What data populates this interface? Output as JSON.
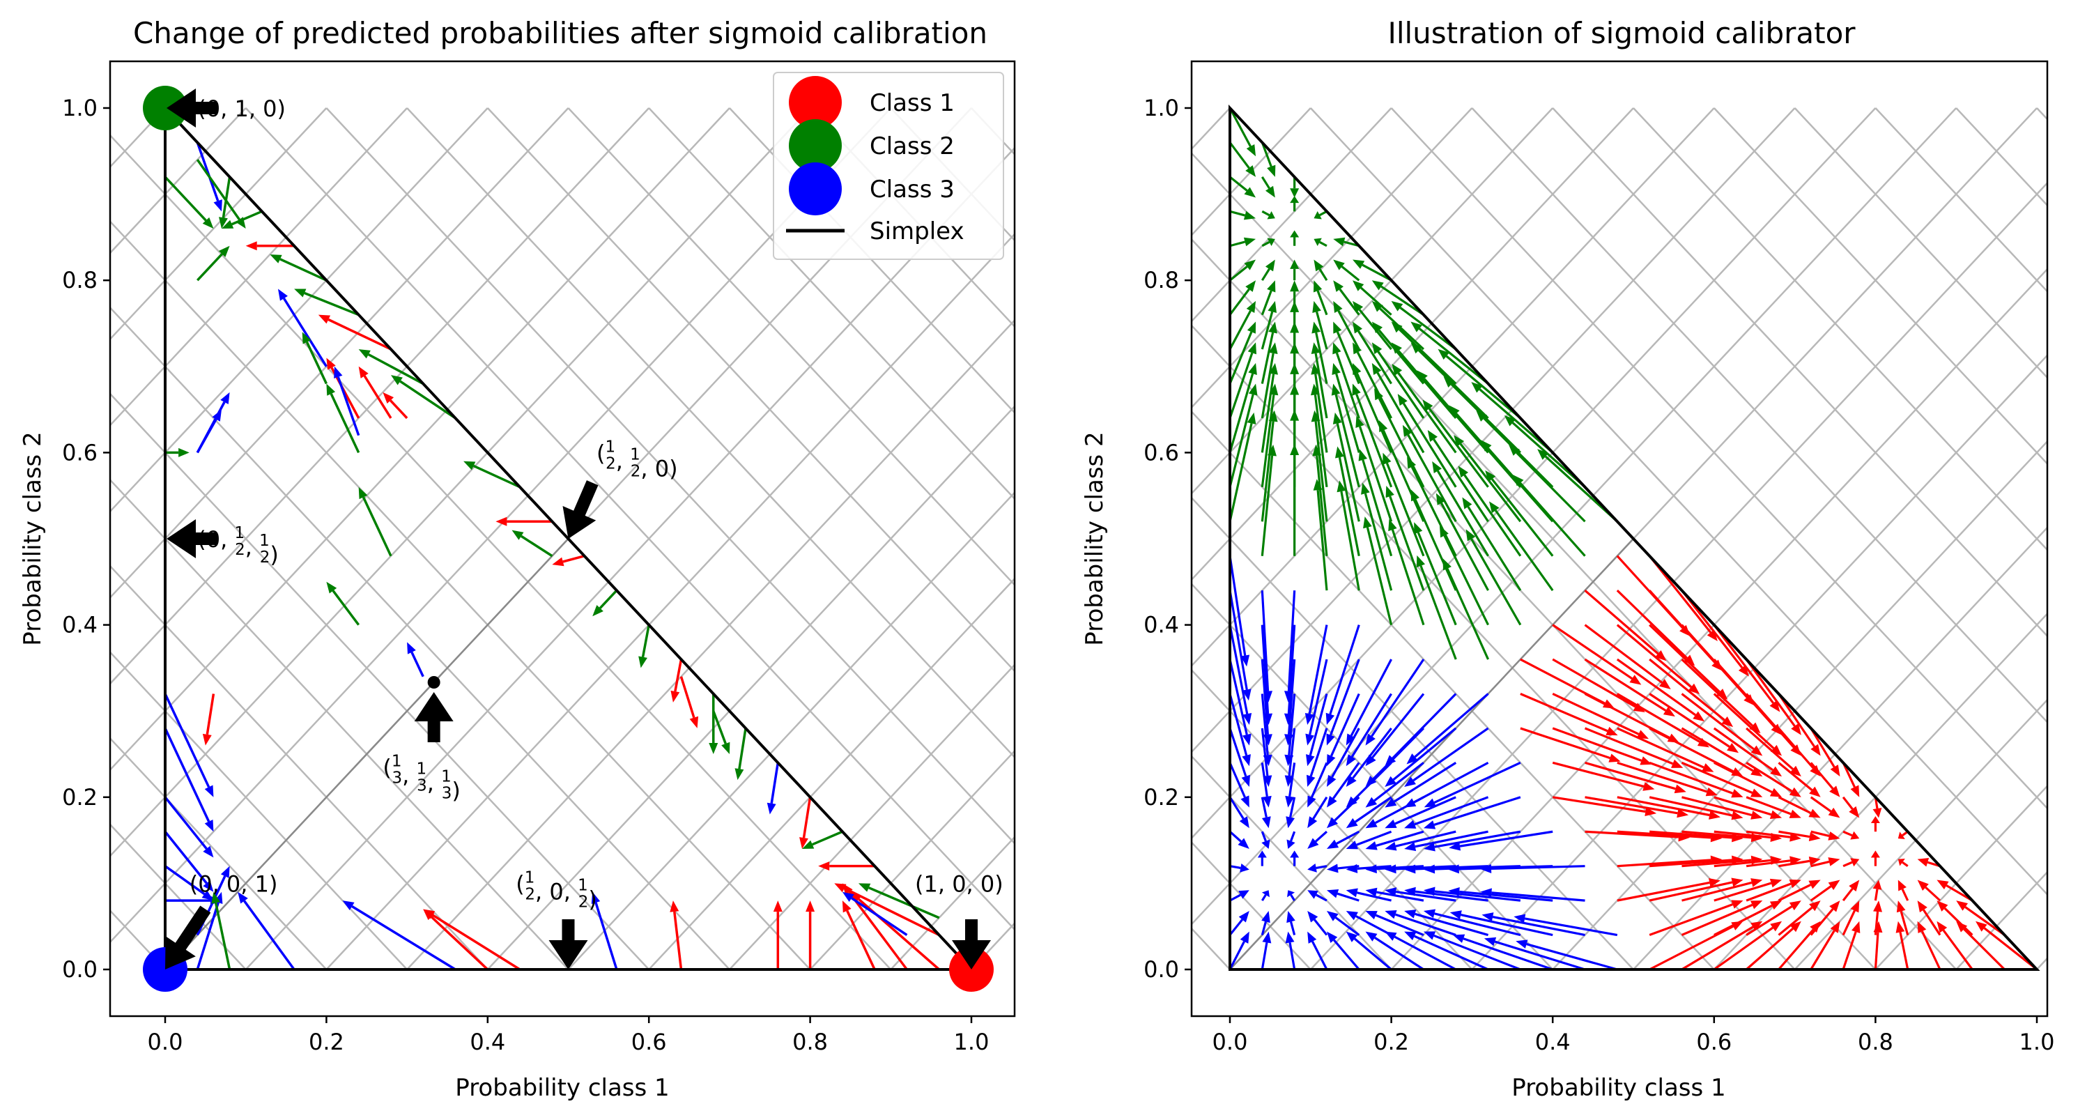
{
  "chart_data": [
    {
      "type": "quiver",
      "title": "Change of predicted probabilities after sigmoid calibration",
      "xlabel": "Probability class 1",
      "ylabel": "Probability class 2",
      "xlim": [
        -0.05,
        1.05
      ],
      "ylim": [
        -0.05,
        1.05
      ],
      "xticks": [
        "0.0",
        "0.2",
        "0.4",
        "0.6",
        "0.8",
        "1.0"
      ],
      "yticks": [
        "0.0",
        "0.2",
        "0.4",
        "0.6",
        "0.8",
        "1.0"
      ],
      "grid": "diagonal gridlines inside simplex",
      "legend": {
        "placement": "top-right",
        "entries": [
          {
            "label": "Class 1",
            "color": "#ff0000",
            "marker": "circle"
          },
          {
            "label": "Class 2",
            "color": "#008000",
            "marker": "circle"
          },
          {
            "label": "Class 3",
            "color": "#0000ff",
            "marker": "circle"
          },
          {
            "label": "Simplex",
            "color": "#000000",
            "marker": "line"
          }
        ]
      },
      "class_points": [
        {
          "name": "Class 1",
          "x": 1.0,
          "y": 0.0,
          "color": "#ff0000"
        },
        {
          "name": "Class 2",
          "x": 0.0,
          "y": 1.0,
          "color": "#008000"
        },
        {
          "name": "Class 3",
          "x": 0.0,
          "y": 0.0,
          "color": "#0000ff"
        }
      ],
      "annotations": [
        {
          "label": "(0, 1, 0)",
          "x": 0.0,
          "y": 1.0
        },
        {
          "label": "(1/2, 1/2, 0)",
          "x": 0.5,
          "y": 0.5
        },
        {
          "label": "(0, 1/2, 1/2)",
          "x": 0.0,
          "y": 0.5
        },
        {
          "label": "(1/3, 1/3, 1/3)",
          "x": 0.333,
          "y": 0.333
        },
        {
          "label": "(0, 0, 1)",
          "x": 0.0,
          "y": 0.0
        },
        {
          "label": "(1/2, 0, 1/2)",
          "x": 0.5,
          "y": 0.0
        },
        {
          "label": "(1, 0, 0)",
          "x": 1.0,
          "y": 0.0
        }
      ],
      "arrows": [
        {
          "x": 0.0,
          "y": 0.6,
          "dx": 0.03,
          "dy": 0.0,
          "color": "#008000"
        },
        {
          "x": 0.04,
          "y": 0.6,
          "dx": 0.04,
          "dy": 0.07,
          "color": "#0000ff"
        },
        {
          "x": 0.04,
          "y": 0.6,
          "dx": 0.03,
          "dy": 0.05,
          "color": "#0000ff"
        },
        {
          "x": 0.0,
          "y": 0.92,
          "dx": 0.06,
          "dy": -0.06,
          "color": "#008000"
        },
        {
          "x": 0.04,
          "y": 0.96,
          "dx": 0.03,
          "dy": -0.08,
          "color": "#0000ff"
        },
        {
          "x": 0.04,
          "y": 0.94,
          "dx": 0.06,
          "dy": -0.08,
          "color": "#008000"
        },
        {
          "x": 0.08,
          "y": 0.92,
          "dx": -0.01,
          "dy": -0.06,
          "color": "#008000"
        },
        {
          "x": 0.12,
          "y": 0.88,
          "dx": -0.05,
          "dy": -0.02,
          "color": "#008000"
        },
        {
          "x": 0.16,
          "y": 0.84,
          "dx": -0.06,
          "dy": 0.0,
          "color": "#ff0000"
        },
        {
          "x": 0.04,
          "y": 0.8,
          "dx": 0.04,
          "dy": 0.04,
          "color": "#008000"
        },
        {
          "x": 0.2,
          "y": 0.8,
          "dx": -0.07,
          "dy": 0.03,
          "color": "#008000"
        },
        {
          "x": 0.24,
          "y": 0.76,
          "dx": -0.08,
          "dy": 0.03,
          "color": "#008000"
        },
        {
          "x": 0.2,
          "y": 0.7,
          "dx": -0.06,
          "dy": 0.09,
          "color": "#0000ff"
        },
        {
          "x": 0.28,
          "y": 0.72,
          "dx": -0.09,
          "dy": 0.04,
          "color": "#ff0000"
        },
        {
          "x": 0.32,
          "y": 0.68,
          "dx": -0.08,
          "dy": 0.04,
          "color": "#008000"
        },
        {
          "x": 0.2,
          "y": 0.68,
          "dx": -0.03,
          "dy": 0.06,
          "color": "#008000"
        },
        {
          "x": 0.24,
          "y": 0.64,
          "dx": -0.04,
          "dy": 0.07,
          "color": "#ff0000"
        },
        {
          "x": 0.24,
          "y": 0.62,
          "dx": -0.03,
          "dy": 0.08,
          "color": "#0000ff"
        },
        {
          "x": 0.28,
          "y": 0.64,
          "dx": -0.04,
          "dy": 0.06,
          "color": "#ff0000"
        },
        {
          "x": 0.3,
          "y": 0.64,
          "dx": -0.03,
          "dy": 0.03,
          "color": "#ff0000"
        },
        {
          "x": 0.24,
          "y": 0.6,
          "dx": -0.04,
          "dy": 0.08,
          "color": "#008000"
        },
        {
          "x": 0.36,
          "y": 0.64,
          "dx": -0.08,
          "dy": 0.05,
          "color": "#008000"
        },
        {
          "x": 0.44,
          "y": 0.56,
          "dx": -0.07,
          "dy": 0.03,
          "color": "#008000"
        },
        {
          "x": 0.28,
          "y": 0.48,
          "dx": -0.04,
          "dy": 0.08,
          "color": "#008000"
        },
        {
          "x": 0.24,
          "y": 0.4,
          "dx": -0.04,
          "dy": 0.05,
          "color": "#008000"
        },
        {
          "x": 0.48,
          "y": 0.52,
          "dx": -0.07,
          "dy": 0.0,
          "color": "#ff0000"
        },
        {
          "x": 0.48,
          "y": 0.48,
          "dx": -0.05,
          "dy": 0.03,
          "color": "#008000"
        },
        {
          "x": 0.52,
          "y": 0.48,
          "dx": -0.04,
          "dy": -0.01,
          "color": "#ff0000"
        },
        {
          "x": 0.56,
          "y": 0.44,
          "dx": -0.03,
          "dy": -0.03,
          "color": "#008000"
        },
        {
          "x": 0.6,
          "y": 0.4,
          "dx": -0.01,
          "dy": -0.05,
          "color": "#008000"
        },
        {
          "x": 0.64,
          "y": 0.36,
          "dx": -0.01,
          "dy": -0.05,
          "color": "#ff0000"
        },
        {
          "x": 0.64,
          "y": 0.34,
          "dx": 0.02,
          "dy": -0.06,
          "color": "#ff0000"
        },
        {
          "x": 0.68,
          "y": 0.32,
          "dx": 0.0,
          "dy": -0.07,
          "color": "#008000"
        },
        {
          "x": 0.68,
          "y": 0.3,
          "dx": 0.02,
          "dy": -0.05,
          "color": "#008000"
        },
        {
          "x": 0.72,
          "y": 0.28,
          "dx": -0.01,
          "dy": -0.06,
          "color": "#008000"
        },
        {
          "x": 0.76,
          "y": 0.24,
          "dx": -0.01,
          "dy": -0.06,
          "color": "#0000ff"
        },
        {
          "x": 0.8,
          "y": 0.2,
          "dx": -0.01,
          "dy": -0.06,
          "color": "#ff0000"
        },
        {
          "x": 0.84,
          "y": 0.16,
          "dx": -0.05,
          "dy": -0.02,
          "color": "#008000"
        },
        {
          "x": 0.88,
          "y": 0.12,
          "dx": -0.07,
          "dy": 0.0,
          "color": "#ff0000"
        },
        {
          "x": 0.06,
          "y": 0.32,
          "dx": -0.01,
          "dy": -0.06,
          "color": "#ff0000"
        },
        {
          "x": 0.32,
          "y": 0.34,
          "dx": -0.02,
          "dy": 0.04,
          "color": "#0000ff"
        },
        {
          "x": 0.0,
          "y": 0.32,
          "dx": 0.06,
          "dy": -0.12,
          "color": "#0000ff"
        },
        {
          "x": 0.0,
          "y": 0.28,
          "dx": 0.06,
          "dy": -0.12,
          "color": "#0000ff"
        },
        {
          "x": 0.0,
          "y": 0.2,
          "dx": 0.06,
          "dy": -0.07,
          "color": "#0000ff"
        },
        {
          "x": 0.0,
          "y": 0.16,
          "dx": 0.06,
          "dy": -0.07,
          "color": "#0000ff"
        },
        {
          "x": 0.0,
          "y": 0.12,
          "dx": 0.06,
          "dy": -0.04,
          "color": "#0000ff"
        },
        {
          "x": 0.0,
          "y": 0.08,
          "dx": 0.07,
          "dy": 0.0,
          "color": "#0000ff"
        },
        {
          "x": 0.04,
          "y": 0.04,
          "dx": 0.04,
          "dy": 0.08,
          "color": "#0000ff"
        },
        {
          "x": 0.04,
          "y": 0.0,
          "dx": 0.03,
          "dy": 0.09,
          "color": "#0000ff"
        },
        {
          "x": 0.08,
          "y": 0.0,
          "dx": -0.02,
          "dy": 0.09,
          "color": "#008000"
        },
        {
          "x": 0.16,
          "y": 0.0,
          "dx": -0.07,
          "dy": 0.09,
          "color": "#0000ff"
        },
        {
          "x": 0.36,
          "y": 0.0,
          "dx": -0.14,
          "dy": 0.08,
          "color": "#0000ff"
        },
        {
          "x": 0.44,
          "y": 0.0,
          "dx": -0.12,
          "dy": 0.07,
          "color": "#ff0000"
        },
        {
          "x": 0.4,
          "y": 0.0,
          "dx": -0.08,
          "dy": 0.07,
          "color": "#ff0000"
        },
        {
          "x": 0.56,
          "y": 0.0,
          "dx": -0.03,
          "dy": 0.09,
          "color": "#0000ff"
        },
        {
          "x": 0.64,
          "y": 0.0,
          "dx": -0.01,
          "dy": 0.08,
          "color": "#ff0000"
        },
        {
          "x": 0.76,
          "y": 0.0,
          "dx": 0.0,
          "dy": 0.08,
          "color": "#ff0000"
        },
        {
          "x": 0.8,
          "y": 0.0,
          "dx": 0.0,
          "dy": 0.08,
          "color": "#ff0000"
        },
        {
          "x": 0.88,
          "y": 0.0,
          "dx": -0.04,
          "dy": 0.08,
          "color": "#ff0000"
        },
        {
          "x": 0.92,
          "y": 0.0,
          "dx": -0.08,
          "dy": 0.1,
          "color": "#ff0000"
        },
        {
          "x": 0.96,
          "y": 0.0,
          "dx": -0.11,
          "dy": 0.09,
          "color": "#ff0000"
        },
        {
          "x": 0.96,
          "y": 0.04,
          "dx": -0.13,
          "dy": 0.06,
          "color": "#ff0000"
        },
        {
          "x": 0.96,
          "y": 0.06,
          "dx": -0.1,
          "dy": 0.04,
          "color": "#008000"
        },
        {
          "x": 0.92,
          "y": 0.04,
          "dx": -0.08,
          "dy": 0.05,
          "color": "#0000ff"
        }
      ]
    },
    {
      "type": "quiver",
      "title": "Illustration of sigmoid calibrator",
      "xlabel": "Probability class 1",
      "ylabel": "Probability class 2",
      "xlim": [
        -0.05,
        1.05
      ],
      "ylim": [
        -0.05,
        1.05
      ],
      "xticks": [
        "0.0",
        "0.2",
        "0.4",
        "0.6",
        "0.8",
        "1.0"
      ],
      "yticks": [
        "0.0",
        "0.2",
        "0.4",
        "0.6",
        "0.8",
        "1.0"
      ],
      "grid": "diagonal gridlines inside simplex",
      "attractors": [
        {
          "class": "Class 1",
          "x": 0.81,
          "y": 0.14,
          "color": "#ff0000"
        },
        {
          "class": "Class 2",
          "x": 0.08,
          "y": 0.86,
          "color": "#008000"
        },
        {
          "class": "Class 3",
          "x": 0.06,
          "y": 0.11,
          "color": "#0000ff"
        }
      ],
      "arrow_step": 0.04,
      "arrow_scale": 0.25,
      "arrow_cap": 0.13
    }
  ]
}
